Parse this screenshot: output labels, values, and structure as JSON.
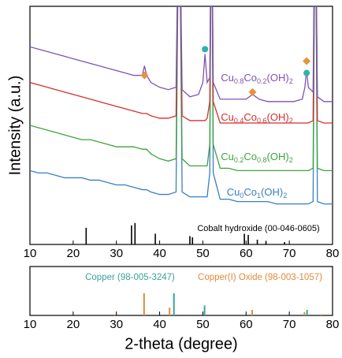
{
  "chart_data": [
    {
      "type": "line",
      "ylabel": "Intensity (a.u.)",
      "xlim": [
        10,
        80
      ],
      "xticks": [
        10,
        20,
        30,
        40,
        50,
        60,
        70,
        80
      ],
      "ylim": [
        0,
        100
      ],
      "x": [
        10,
        12,
        14,
        16,
        18,
        20,
        22,
        24,
        26,
        28,
        30,
        32,
        34,
        36,
        36.5,
        37,
        38,
        40,
        42,
        43.8,
        44.5,
        45.2,
        47,
        49,
        50,
        50.5,
        51,
        51.6,
        52,
        52.4,
        54,
        56,
        58,
        60,
        61.5,
        63,
        65,
        67,
        69,
        71,
        73,
        73.6,
        74,
        74.4,
        75.5,
        76,
        76.5,
        78,
        80
      ],
      "series": [
        {
          "name": "Cu0Co1(OH)2",
          "color": "#3a7ebf",
          "values": [
            31,
            30,
            30,
            29,
            28,
            28,
            28,
            27,
            27,
            26,
            25,
            25,
            24,
            23,
            23,
            23,
            22,
            21,
            21,
            22,
            160,
            22,
            20,
            20,
            20,
            20,
            20,
            30,
            160,
            30,
            19,
            19,
            18,
            18,
            18,
            18,
            18,
            17,
            17,
            17,
            17,
            17,
            17,
            17,
            18,
            160,
            18,
            17,
            17
          ]
        },
        {
          "name": "Cu0.2Co0.8(OH)2",
          "color": "#3fa33f",
          "values": [
            50,
            49,
            48,
            47,
            46,
            45,
            44,
            44,
            43,
            42,
            41,
            41,
            41,
            40,
            40,
            40,
            38,
            36,
            35,
            36,
            160,
            36,
            33,
            33,
            33,
            33,
            33,
            42,
            160,
            42,
            32,
            32,
            31,
            31,
            31,
            31,
            31,
            31,
            31,
            31,
            31,
            31,
            31,
            31,
            32,
            160,
            32,
            31,
            31
          ]
        },
        {
          "name": "Cu0.4Co0.6(OH)2",
          "color": "#d62f2f",
          "values": [
            68,
            67,
            66,
            65,
            64,
            63,
            62,
            61,
            60,
            59,
            58,
            57,
            56,
            55,
            55,
            55,
            54,
            53,
            53,
            54,
            160,
            54,
            52,
            52,
            52,
            52,
            53,
            60,
            160,
            60,
            51,
            51,
            51,
            51,
            51,
            51,
            51,
            51,
            51,
            51,
            51,
            51,
            51,
            51,
            52,
            160,
            52,
            51,
            51
          ]
        },
        {
          "name": "Cu0.8Co0.2(OH)2",
          "color": "#7f52b5",
          "values": [
            83,
            82,
            81,
            80,
            79,
            78,
            77,
            76,
            75,
            74,
            73,
            72,
            71,
            71,
            75,
            71,
            68,
            66,
            65,
            66,
            160,
            65,
            62,
            63,
            68,
            80,
            68,
            70,
            160,
            68,
            61,
            61,
            61,
            61,
            63,
            61,
            60,
            60,
            60,
            60,
            61,
            66,
            73,
            66,
            64,
            160,
            62,
            60,
            60
          ]
        }
      ],
      "reference": {
        "name": "Cobalt hydroxide (00-046-0605)",
        "color": "#000000",
        "x": [
          23,
          33.5,
          34.3,
          39,
          47,
          47.6,
          59.6,
          60.5,
          62.6,
          64.6,
          68.9
        ],
        "values": [
          7,
          8,
          9,
          4.5,
          3.5,
          3,
          4.5,
          4,
          2,
          1.5,
          1
        ]
      },
      "markers": [
        {
          "x": 36.5,
          "y": 71,
          "color": "#e8923a",
          "shape": "diamond"
        },
        {
          "x": 61.5,
          "y": 64,
          "color": "#e8923a",
          "shape": "diamond"
        },
        {
          "x": 74,
          "y": 77,
          "color": "#e8923a",
          "shape": "diamond"
        },
        {
          "x": 50.5,
          "y": 82,
          "color": "#2bb3a8",
          "shape": "circle"
        },
        {
          "x": 74,
          "y": 72,
          "color": "#2bb3a8",
          "shape": "circle"
        }
      ]
    },
    {
      "type": "stick",
      "xlabel": "2-theta (degree)",
      "xlim": [
        10,
        80
      ],
      "xticks": [
        10,
        20,
        30,
        40,
        50,
        60,
        70,
        80
      ],
      "ylim": [
        0,
        220
      ],
      "series": [
        {
          "name": "Copper (98-005-3247)",
          "color": "#3aa39a",
          "x": [
            43.3,
            50.4,
            74.1
          ],
          "values": [
            100,
            45,
            25
          ]
        },
        {
          "name": "Copper(I) Oxide (98-003-1057)",
          "color": "#e08a3a",
          "x": [
            29.6,
            36.4,
            42.3,
            61.4,
            73.5,
            77.4
          ],
          "values": [
            5,
            100,
            35,
            25,
            15,
            5
          ]
        }
      ]
    }
  ]
}
